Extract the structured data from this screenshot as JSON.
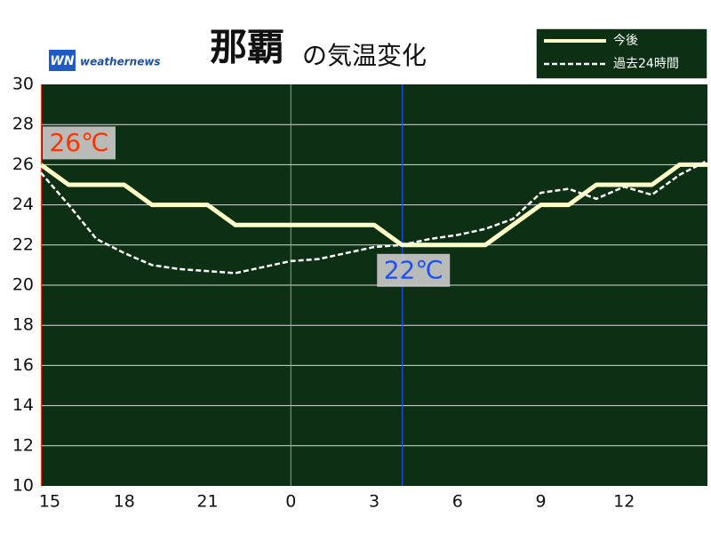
{
  "chart_data": {
    "type": "line",
    "title": "那覇",
    "subtitle": "の気温変化",
    "logo": "weathernews",
    "x": [
      15,
      16,
      17,
      18,
      19,
      20,
      21,
      22,
      23,
      24,
      25,
      26,
      27,
      28,
      29,
      30,
      31,
      32,
      33,
      34,
      35,
      36,
      37,
      38,
      39
    ],
    "series": [
      {
        "name": "今後",
        "color": "#ffffc8",
        "style": "solid",
        "values": [
          26,
          25,
          25,
          25,
          24,
          24,
          24,
          23,
          23,
          23,
          23,
          23,
          23,
          22,
          22,
          22,
          22,
          23,
          24,
          24,
          25,
          25,
          25,
          26,
          26
        ]
      },
      {
        "name": "過去24時間",
        "color": "#ffffff",
        "style": "dashed",
        "values": [
          25.6,
          24,
          22.3,
          21.6,
          21,
          20.8,
          20.7,
          20.6,
          20.9,
          21.2,
          21.3,
          21.6,
          21.9,
          22,
          22.3,
          22.5,
          22.8,
          23.3,
          24.6,
          24.8,
          24.3,
          24.9,
          24.5,
          25.5,
          26.2
        ]
      }
    ],
    "xlim": [
      15,
      39
    ],
    "xticks": [
      15,
      18,
      21,
      {
        "value": 24,
        "label": "0"
      },
      {
        "value": 27,
        "label": "3"
      },
      {
        "value": 30,
        "label": "6"
      },
      {
        "value": 33,
        "label": "9"
      },
      {
        "value": 36,
        "label": "12"
      }
    ],
    "x_grid": [
      24
    ],
    "ylim": [
      10,
      30
    ],
    "yticks": [
      10,
      12,
      14,
      16,
      18,
      20,
      22,
      24,
      26,
      28,
      30
    ],
    "grid": true,
    "annotations": [
      {
        "text": "26℃",
        "x": 15,
        "y": 26,
        "color": "#ff3300"
      },
      {
        "text": "22℃",
        "x": 28,
        "y": 22,
        "color": "#1a4fff"
      }
    ]
  }
}
